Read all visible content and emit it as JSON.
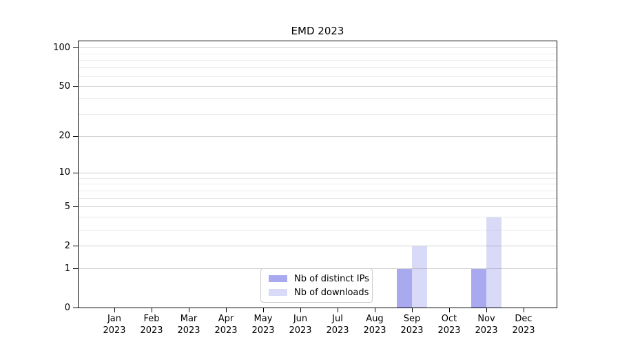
{
  "chart_data": {
    "type": "bar",
    "title": "EMD 2023",
    "categories": [
      "Jan",
      "Feb",
      "Mar",
      "Apr",
      "May",
      "Jun",
      "Jul",
      "Aug",
      "Sep",
      "Oct",
      "Nov",
      "Dec"
    ],
    "year_label": "2023",
    "series": [
      {
        "name": "Nb of distinct IPs",
        "color": "#a9a9f0",
        "values": [
          0,
          0,
          0,
          0,
          0,
          0,
          0,
          0,
          1,
          0,
          1,
          0
        ]
      },
      {
        "name": "Nb of downloads",
        "color": "#d9d9f8",
        "values": [
          0,
          0,
          0,
          0,
          0,
          0,
          0,
          0,
          2,
          0,
          4,
          0
        ]
      }
    ],
    "y_axis": {
      "scale": "symlog",
      "ticks": [
        0,
        1,
        2,
        5,
        10,
        20,
        50,
        100
      ],
      "minor_gridlines": [
        3,
        4,
        6,
        7,
        8,
        9,
        30,
        40,
        60,
        70,
        80,
        90
      ],
      "range": [
        0,
        113
      ]
    },
    "grid": "horizontal",
    "legend_position": "lower-center"
  }
}
